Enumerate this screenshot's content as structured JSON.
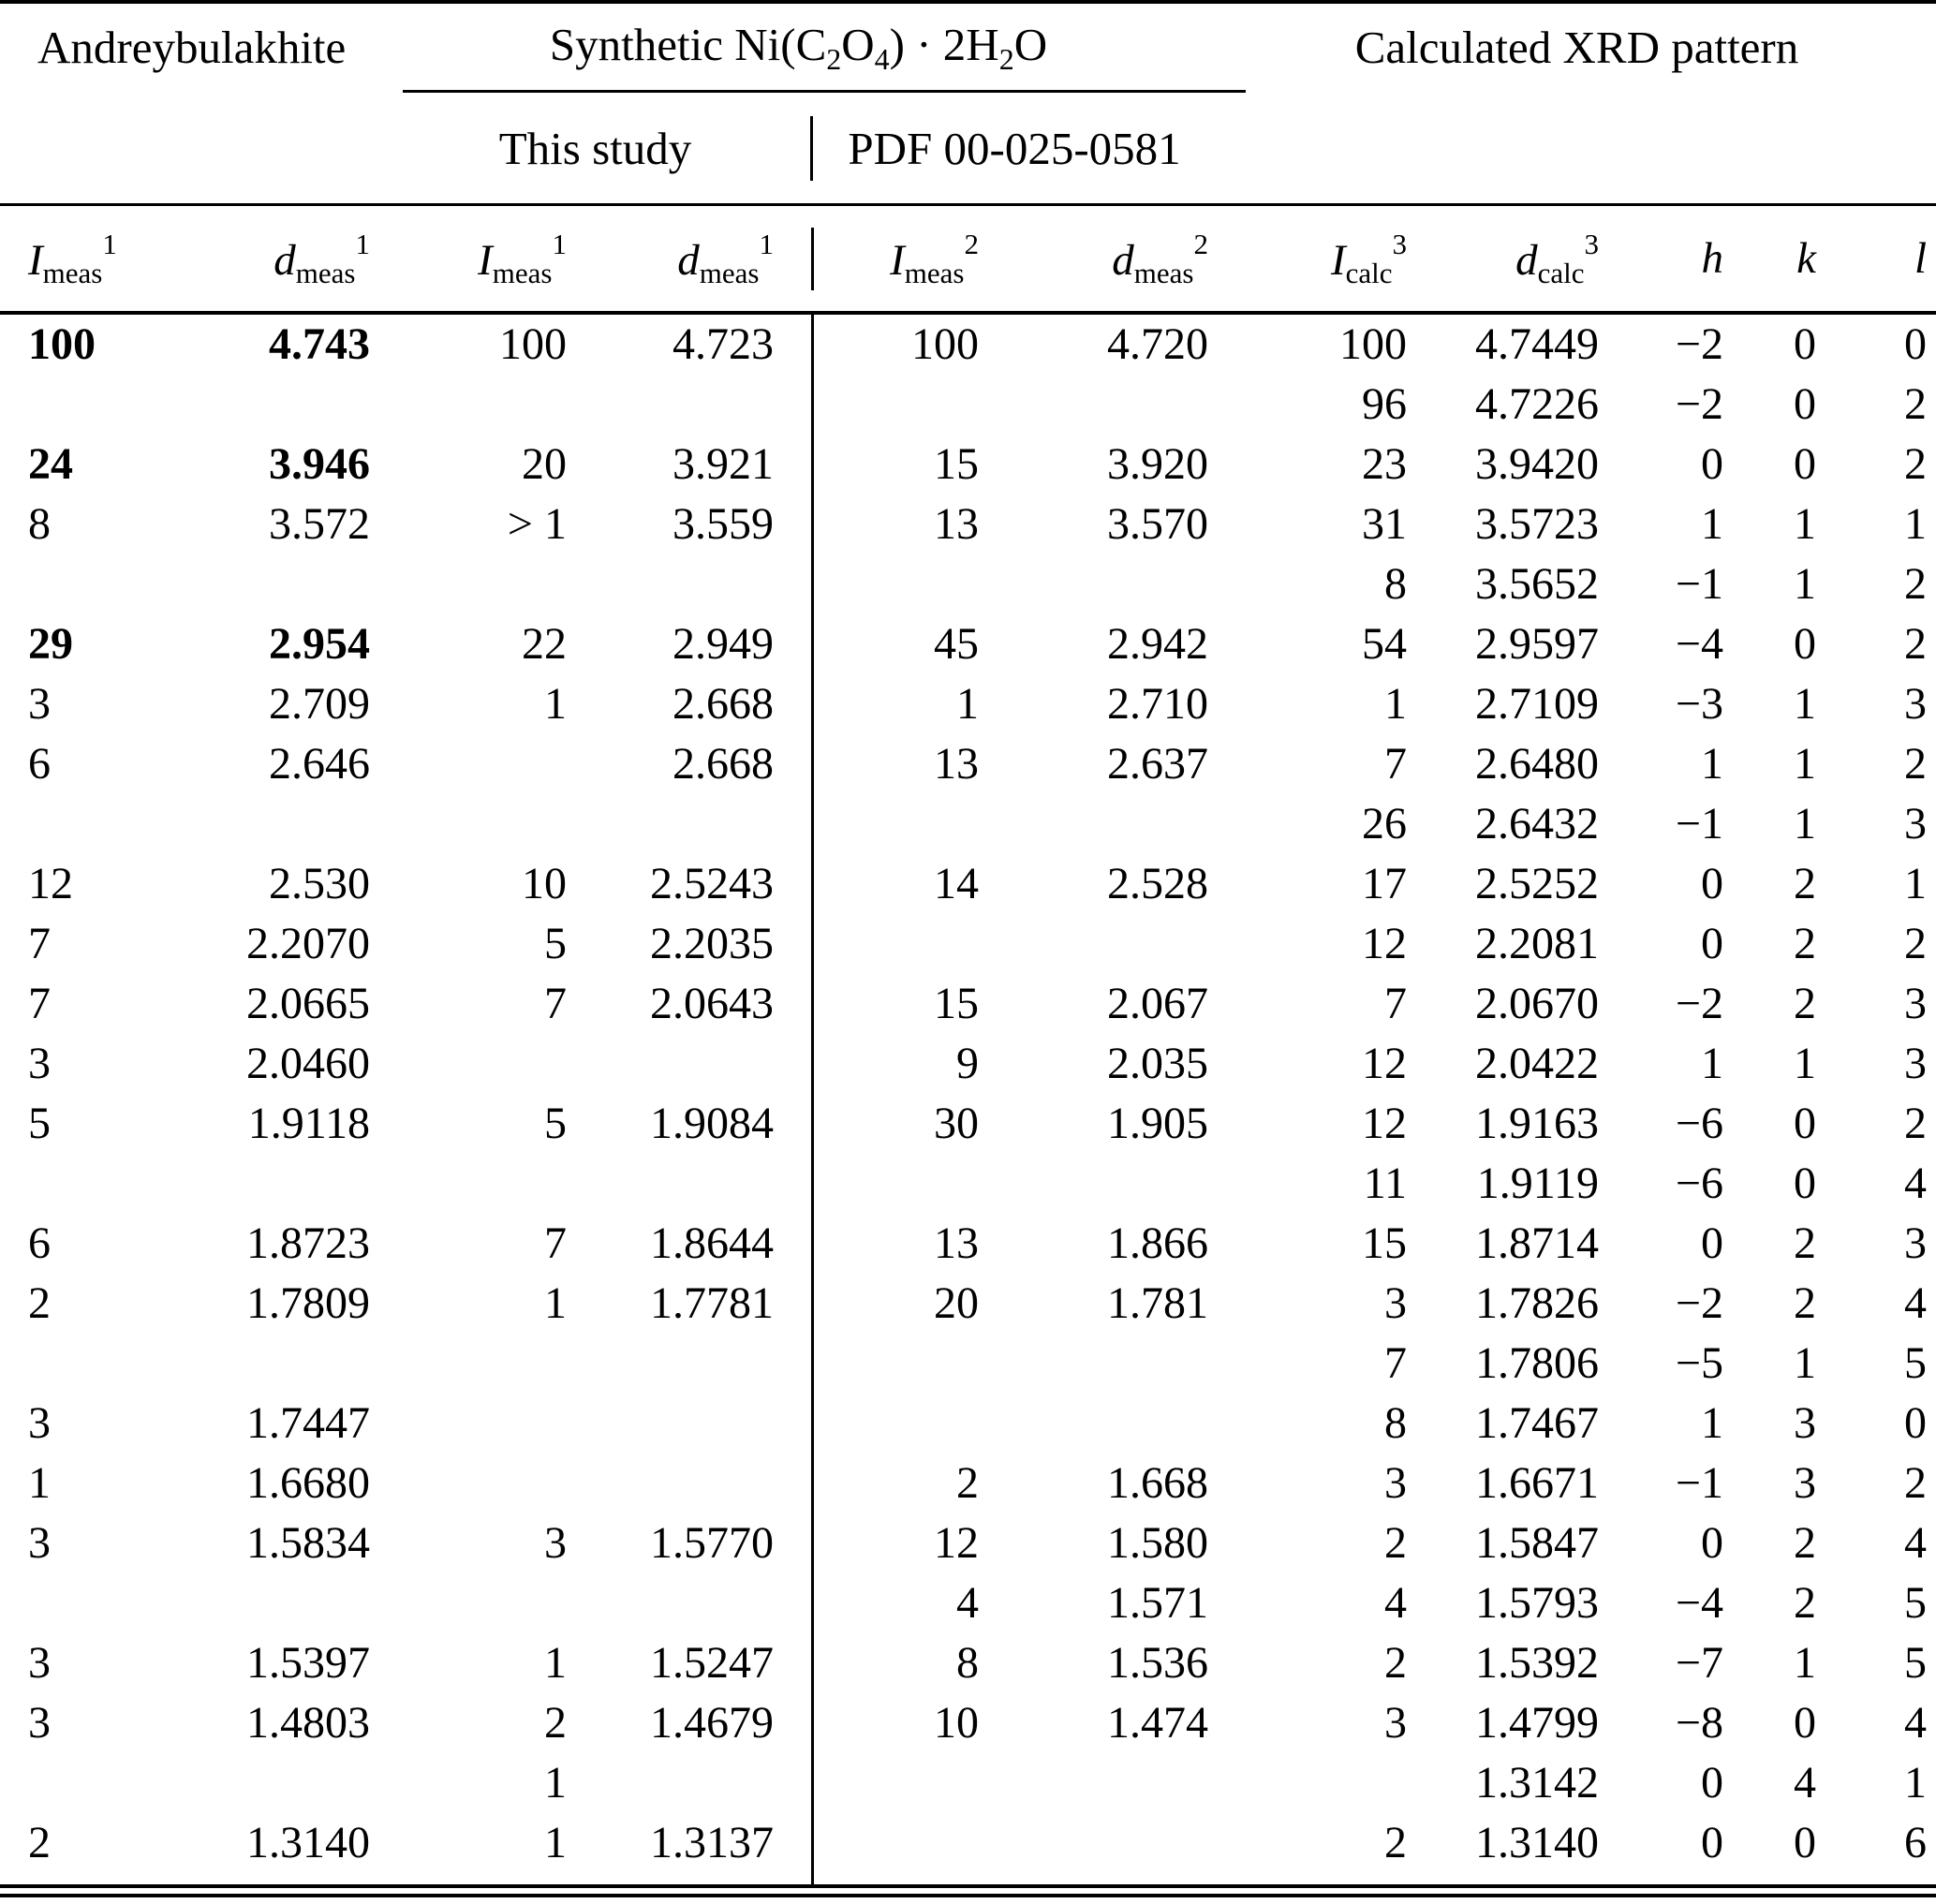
{
  "page": {
    "background": "#ffffff",
    "text_color": "#000000"
  },
  "table": {
    "title_row": {
      "andreybulakhite": "Andreybulakhite",
      "synthetic": {
        "p1": "Synthetic Ni(C",
        "s1": "2",
        "p2": "O",
        "s2": "4",
        "p3": ") · 2H",
        "s3": "2",
        "p4": "O"
      },
      "calculated": "Calculated XRD pattern"
    },
    "sub_header": {
      "this_study": "This study",
      "pdf": "PDF 00-025-0581"
    },
    "columns": [
      {
        "var": "I",
        "sub": "meas",
        "sup": "1"
      },
      {
        "var": "d",
        "sub": "meas",
        "sup": "1"
      },
      {
        "var": "I",
        "sub": "meas",
        "sup": "1"
      },
      {
        "var": "d",
        "sub": "meas",
        "sup": "1"
      },
      {
        "var": "I",
        "sub": "meas",
        "sup": "2"
      },
      {
        "var": "d",
        "sub": "meas",
        "sup": "2"
      },
      {
        "var": "I",
        "sub": "calc",
        "sup": "3"
      },
      {
        "var": "d",
        "sub": "calc",
        "sup": "3"
      },
      {
        "var": "h"
      },
      {
        "var": "k"
      },
      {
        "var": "l"
      }
    ],
    "rows": [
      {
        "bold": true,
        "cells": [
          "100",
          "4.743",
          "100",
          "4.723",
          "100",
          "4.720",
          "100",
          "4.7449",
          "−2",
          "0",
          "0"
        ]
      },
      {
        "bold": false,
        "cells": [
          "",
          "",
          "",
          "",
          "",
          "",
          "96",
          "4.7226",
          "−2",
          "0",
          "2"
        ]
      },
      {
        "bold": true,
        "cells": [
          "24",
          "3.946",
          "20",
          "3.921",
          "15",
          "3.920",
          "23",
          "3.9420",
          "0",
          "0",
          "2"
        ]
      },
      {
        "bold": false,
        "cells": [
          "8",
          "3.572",
          "> 1",
          "3.559",
          "13",
          "3.570",
          "31",
          "3.5723",
          "1",
          "1",
          "1"
        ]
      },
      {
        "bold": false,
        "cells": [
          "",
          "",
          "",
          "",
          "",
          "",
          "8",
          "3.5652",
          "−1",
          "1",
          "2"
        ]
      },
      {
        "bold": true,
        "cells": [
          "29",
          "2.954",
          "22",
          "2.949",
          "45",
          "2.942",
          "54",
          "2.9597",
          "−4",
          "0",
          "2"
        ]
      },
      {
        "bold": false,
        "cells": [
          "3",
          "2.709",
          "1",
          "2.668",
          "1",
          "2.710",
          "1",
          "2.7109",
          "−3",
          "1",
          "3"
        ]
      },
      {
        "bold": false,
        "cells": [
          "6",
          "2.646",
          "",
          "2.668",
          "13",
          "2.637",
          "7",
          "2.6480",
          "1",
          "1",
          "2"
        ]
      },
      {
        "bold": false,
        "cells": [
          "",
          "",
          "",
          "",
          "",
          "",
          "26",
          "2.6432",
          "−1",
          "1",
          "3"
        ]
      },
      {
        "bold": false,
        "cells": [
          "12",
          "2.530",
          "10",
          "2.5243",
          "14",
          "2.528",
          "17",
          "2.5252",
          "0",
          "2",
          "1"
        ]
      },
      {
        "bold": false,
        "cells": [
          "7",
          "2.2070",
          "5",
          "2.2035",
          "",
          "",
          "12",
          "2.2081",
          "0",
          "2",
          "2"
        ]
      },
      {
        "bold": false,
        "cells": [
          "7",
          "2.0665",
          "7",
          "2.0643",
          "15",
          "2.067",
          "7",
          "2.0670",
          "−2",
          "2",
          "3"
        ]
      },
      {
        "bold": false,
        "cells": [
          "3",
          "2.0460",
          "",
          "",
          "9",
          "2.035",
          "12",
          "2.0422",
          "1",
          "1",
          "3"
        ]
      },
      {
        "bold": false,
        "cells": [
          "5",
          "1.9118",
          "5",
          "1.9084",
          "30",
          "1.905",
          "12",
          "1.9163",
          "−6",
          "0",
          "2"
        ]
      },
      {
        "bold": false,
        "cells": [
          "",
          "",
          "",
          "",
          "",
          "",
          "11",
          "1.9119",
          "−6",
          "0",
          "4"
        ]
      },
      {
        "bold": false,
        "cells": [
          "6",
          "1.8723",
          "7",
          "1.8644",
          "13",
          "1.866",
          "15",
          "1.8714",
          "0",
          "2",
          "3"
        ]
      },
      {
        "bold": false,
        "cells": [
          "2",
          "1.7809",
          "1",
          "1.7781",
          "20",
          "1.781",
          "3",
          "1.7826",
          "−2",
          "2",
          "4"
        ]
      },
      {
        "bold": false,
        "cells": [
          "",
          "",
          "",
          "",
          "",
          "",
          "7",
          "1.7806",
          "−5",
          "1",
          "5"
        ]
      },
      {
        "bold": false,
        "cells": [
          "3",
          "1.7447",
          "",
          "",
          "",
          "",
          "8",
          "1.7467",
          "1",
          "3",
          "0"
        ]
      },
      {
        "bold": false,
        "cells": [
          "1",
          "1.6680",
          "",
          "",
          "2",
          "1.668",
          "3",
          "1.6671",
          "−1",
          "3",
          "2"
        ]
      },
      {
        "bold": false,
        "cells": [
          "3",
          "1.5834",
          "3",
          "1.5770",
          "12",
          "1.580",
          "2",
          "1.5847",
          "0",
          "2",
          "4"
        ]
      },
      {
        "bold": false,
        "cells": [
          "",
          "",
          "",
          "",
          "4",
          "1.571",
          "4",
          "1.5793",
          "−4",
          "2",
          "5"
        ]
      },
      {
        "bold": false,
        "cells": [
          "3",
          "1.5397",
          "1",
          "1.5247",
          "8",
          "1.536",
          "2",
          "1.5392",
          "−7",
          "1",
          "5"
        ]
      },
      {
        "bold": false,
        "cells": [
          "3",
          "1.4803",
          "2",
          "1.4679",
          "10",
          "1.474",
          "3",
          "1.4799",
          "−8",
          "0",
          "4"
        ]
      },
      {
        "bold": false,
        "cells": [
          "",
          "",
          "1",
          "",
          "",
          "",
          "",
          "1.3142",
          "0",
          "4",
          "1"
        ]
      },
      {
        "bold": false,
        "cells": [
          "2",
          "1.3140",
          "1",
          "1.3137",
          "",
          "",
          "2",
          "1.3140",
          "0",
          "0",
          "6"
        ]
      }
    ]
  }
}
